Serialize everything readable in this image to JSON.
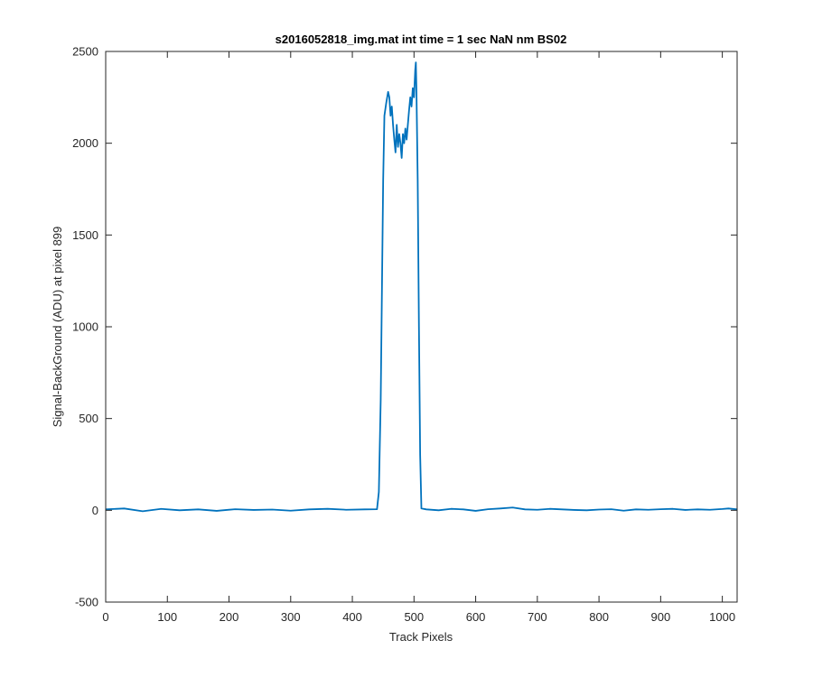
{
  "chart_data": {
    "type": "line",
    "title": "s2016052818_img.mat int time = 1 sec  NaN nm BS02",
    "xlabel": "Track Pixels",
    "ylabel": "Signal-BackGround (ADU) at pixel 899",
    "xlim": [
      0,
      1024
    ],
    "ylim": [
      -500,
      2500
    ],
    "xticks": [
      0,
      100,
      200,
      300,
      400,
      500,
      600,
      700,
      800,
      900,
      1000
    ],
    "yticks": [
      -500,
      0,
      500,
      1000,
      1500,
      2000,
      2500
    ],
    "grid": false,
    "line_color": "#0072BD",
    "series": [
      {
        "x": [
          0,
          30,
          60,
          90,
          120,
          150,
          180,
          210,
          240,
          270,
          300,
          330,
          360,
          390,
          420,
          440,
          443,
          446,
          448,
          450,
          452,
          455,
          458,
          460,
          462,
          464,
          466,
          468,
          470,
          472,
          474,
          476,
          478,
          480,
          482,
          484,
          486,
          488,
          490,
          492,
          494,
          496,
          498,
          500,
          502,
          503,
          504,
          506,
          508,
          510,
          512,
          520,
          540,
          560,
          580,
          600,
          620,
          640,
          660,
          680,
          700,
          720,
          740,
          760,
          780,
          800,
          820,
          840,
          860,
          880,
          900,
          920,
          940,
          960,
          980,
          1000,
          1010,
          1024
        ],
        "y": [
          5,
          10,
          -5,
          8,
          0,
          5,
          -3,
          6,
          2,
          4,
          -2,
          5,
          8,
          3,
          5,
          6,
          100,
          600,
          1200,
          1800,
          2150,
          2220,
          2280,
          2250,
          2150,
          2200,
          2100,
          2020,
          1950,
          2100,
          1980,
          2050,
          2000,
          1920,
          2050,
          2000,
          2080,
          2020,
          2100,
          2180,
          2250,
          2200,
          2300,
          2250,
          2400,
          2440,
          2280,
          1800,
          1000,
          300,
          10,
          5,
          0,
          8,
          5,
          -3,
          6,
          10,
          15,
          5,
          3,
          8,
          5,
          2,
          0,
          4,
          6,
          -2,
          5,
          3,
          6,
          8,
          2,
          5,
          3,
          7,
          10,
          5
        ]
      }
    ]
  }
}
